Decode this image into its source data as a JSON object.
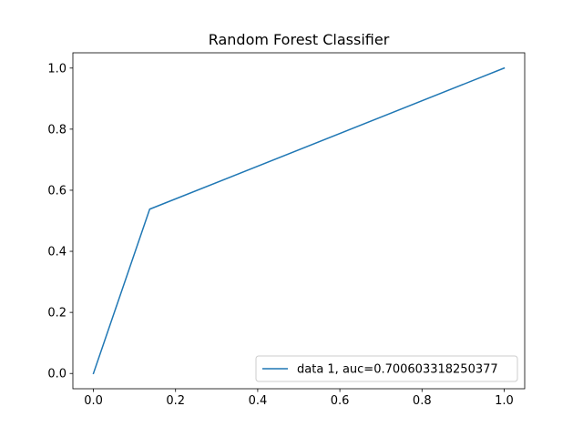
{
  "chart_data": {
    "type": "line",
    "title": "Random Forest Classifier",
    "xlabel": "",
    "ylabel": "",
    "xlim": [
      -0.05,
      1.05
    ],
    "ylim": [
      -0.05,
      1.05
    ],
    "xticks": [
      0.0,
      0.2,
      0.4,
      0.6,
      0.8,
      1.0
    ],
    "yticks": [
      0.0,
      0.2,
      0.4,
      0.6,
      0.8,
      1.0
    ],
    "xtick_labels": [
      "0.0",
      "0.2",
      "0.4",
      "0.6",
      "0.8",
      "1.0"
    ],
    "ytick_labels": [
      "0.0",
      "0.2",
      "0.4",
      "0.6",
      "0.8",
      "1.0"
    ],
    "grid": false,
    "legend_position": "lower-right",
    "series": [
      {
        "name": "data 1, auc=0.700603318250377",
        "color": "#1f77b4",
        "x": [
          0.0,
          0.137,
          1.0
        ],
        "y": [
          0.0,
          0.538,
          1.0
        ]
      }
    ]
  }
}
